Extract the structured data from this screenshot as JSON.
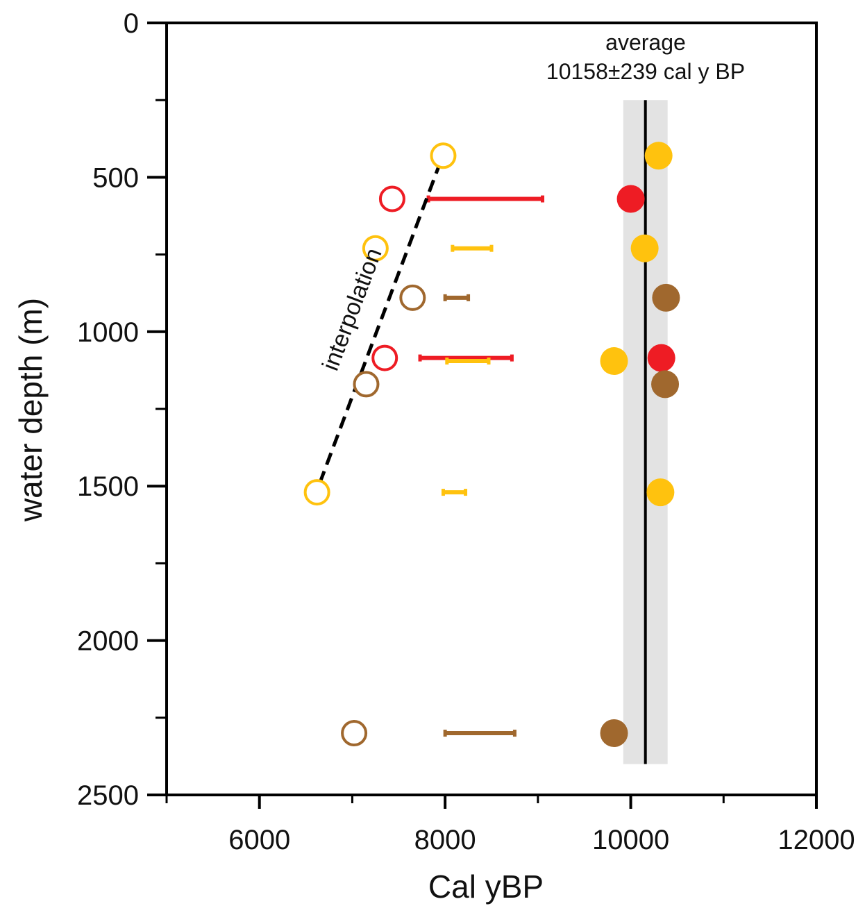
{
  "chart_data": {
    "type": "scatter",
    "xlabel": "Cal yBP",
    "ylabel": "water depth (m)",
    "xlim": [
      5000,
      12000
    ],
    "ylim": [
      0,
      2500
    ],
    "y_inverted": true,
    "x_ticks_major": [
      6000,
      8000,
      10000,
      12000
    ],
    "x_ticks_minor": [
      5000,
      7000,
      9000,
      11000
    ],
    "y_ticks_labeled": [
      0,
      500,
      1000,
      1500,
      2000,
      2500
    ],
    "y_ticks_minor": [
      250,
      750,
      1250,
      1750,
      2250
    ],
    "grid": false,
    "colors": {
      "yellow": "#FFC20E",
      "red": "#EE1C24",
      "brown": "#A0682E",
      "band": "#E3E3E3",
      "line": "#000000"
    },
    "average": {
      "label_line1": "average",
      "label_line2": "10158±239 cal y BP",
      "value": 10158,
      "error": 239,
      "depth_range": [
        250,
        2400
      ]
    },
    "interpolation": {
      "label": "interpolation",
      "from": {
        "x": 7950,
        "y": 450
      },
      "to": {
        "x": 6650,
        "y": 1490
      }
    },
    "open_points": [
      {
        "x": 7980,
        "y": 430,
        "color": "yellow"
      },
      {
        "x": 7430,
        "y": 570,
        "color": "red"
      },
      {
        "x": 7250,
        "y": 730,
        "color": "yellow"
      },
      {
        "x": 7650,
        "y": 890,
        "color": "brown"
      },
      {
        "x": 7350,
        "y": 1085,
        "color": "red"
      },
      {
        "x": 7150,
        "y": 1170,
        "color": "brown"
      },
      {
        "x": 6620,
        "y": 1520,
        "color": "yellow"
      },
      {
        "x": 7020,
        "y": 2300,
        "color": "brown"
      }
    ],
    "filled_points": [
      {
        "x": 10300,
        "y": 430,
        "color": "yellow"
      },
      {
        "x": 10000,
        "y": 570,
        "color": "red"
      },
      {
        "x": 10150,
        "y": 730,
        "color": "yellow"
      },
      {
        "x": 10380,
        "y": 890,
        "color": "brown"
      },
      {
        "x": 9820,
        "y": 1095,
        "color": "yellow"
      },
      {
        "x": 10330,
        "y": 1085,
        "color": "red"
      },
      {
        "x": 10370,
        "y": 1170,
        "color": "brown"
      },
      {
        "x": 10320,
        "y": 1520,
        "color": "yellow"
      },
      {
        "x": 9820,
        "y": 2300,
        "color": "brown"
      }
    ],
    "ranges": [
      {
        "x1": 7820,
        "x2": 9050,
        "y": 570,
        "color": "red"
      },
      {
        "x1": 8080,
        "x2": 8500,
        "y": 730,
        "color": "yellow"
      },
      {
        "x1": 8000,
        "x2": 8250,
        "y": 890,
        "color": "brown"
      },
      {
        "x1": 7730,
        "x2": 8720,
        "y": 1085,
        "color": "red"
      },
      {
        "x1": 8020,
        "x2": 8470,
        "y": 1095,
        "color": "yellow"
      },
      {
        "x1": 7980,
        "x2": 8220,
        "y": 1520,
        "color": "yellow"
      },
      {
        "x1": 8000,
        "x2": 8750,
        "y": 2300,
        "color": "brown"
      }
    ]
  }
}
